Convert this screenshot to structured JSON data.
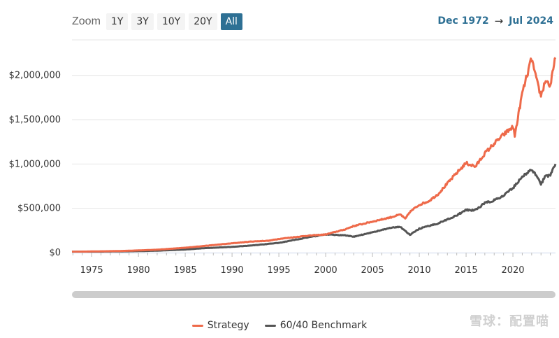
{
  "toolbar": {
    "zoom_label": "Zoom",
    "zoom_buttons": [
      "1Y",
      "3Y",
      "10Y",
      "20Y",
      "All"
    ],
    "active_zoom": "All",
    "range_start": "Dec 1972",
    "range_arrow": "→",
    "range_end": "Jul 2024"
  },
  "watermark": "雪球：配置喵",
  "colors": {
    "strategy": "#ee6a4a",
    "benchmark": "#555555",
    "accent": "#2e7094"
  },
  "chart_data": {
    "type": "line",
    "x_label_years": [
      1975,
      1980,
      1985,
      1990,
      1995,
      2000,
      2005,
      2010,
      2015,
      2020
    ],
    "xlim": [
      1972.9,
      2024.55
    ],
    "ylim": [
      0,
      2400000
    ],
    "y_ticks": [
      {
        "value": 0,
        "label": "$0"
      },
      {
        "value": 500000,
        "label": "$500,000"
      },
      {
        "value": 1000000,
        "label": "$1,000,000"
      },
      {
        "value": 1500000,
        "label": "$1,500,000"
      },
      {
        "value": 2000000,
        "label": "$2,000,000"
      }
    ],
    "grid": true,
    "legend_position": "bottom-center",
    "series": [
      {
        "name": "Strategy",
        "x": [
          1972.9,
          1975,
          1978,
          1980,
          1982,
          1985,
          1987,
          1988,
          1990,
          1992,
          1994,
          1995,
          1998,
          2000,
          2002,
          2003,
          2005,
          2007,
          2008,
          2008.5,
          2009,
          2010,
          2011,
          2012,
          2013,
          2014,
          2015,
          2016,
          2017,
          2018,
          2019,
          2020,
          2020.2,
          2021,
          2022,
          2022.5,
          2023,
          2023.5,
          2024,
          2024.55
        ],
        "values": [
          10000,
          13000,
          18000,
          25000,
          33000,
          55000,
          75000,
          85000,
          105000,
          125000,
          135000,
          155000,
          190000,
          205000,
          260000,
          300000,
          350000,
          400000,
          430000,
          380000,
          460000,
          540000,
          580000,
          660000,
          780000,
          900000,
          1010000,
          970000,
          1120000,
          1230000,
          1330000,
          1420000,
          1320000,
          1800000,
          2190000,
          1950000,
          1770000,
          1950000,
          1880000,
          2200000
        ]
      },
      {
        "name": "60/40 Benchmark",
        "x": [
          1972.9,
          1975,
          1978,
          1980,
          1982,
          1985,
          1987,
          1990,
          1992,
          1995,
          1998,
          2000,
          2002,
          2003,
          2005,
          2007,
          2008,
          2009,
          2010,
          2012,
          2014,
          2015,
          2016,
          2017,
          2018,
          2019,
          2020,
          2021,
          2022,
          2022.5,
          2023,
          2023.5,
          2024,
          2024.55
        ],
        "values": [
          10000,
          11000,
          14000,
          17000,
          22000,
          35000,
          50000,
          65000,
          80000,
          110000,
          170000,
          205000,
          195000,
          180000,
          230000,
          280000,
          290000,
          200000,
          270000,
          330000,
          420000,
          480000,
          480000,
          560000,
          590000,
          640000,
          730000,
          860000,
          930000,
          880000,
          780000,
          860000,
          880000,
          1000000
        ]
      }
    ]
  }
}
